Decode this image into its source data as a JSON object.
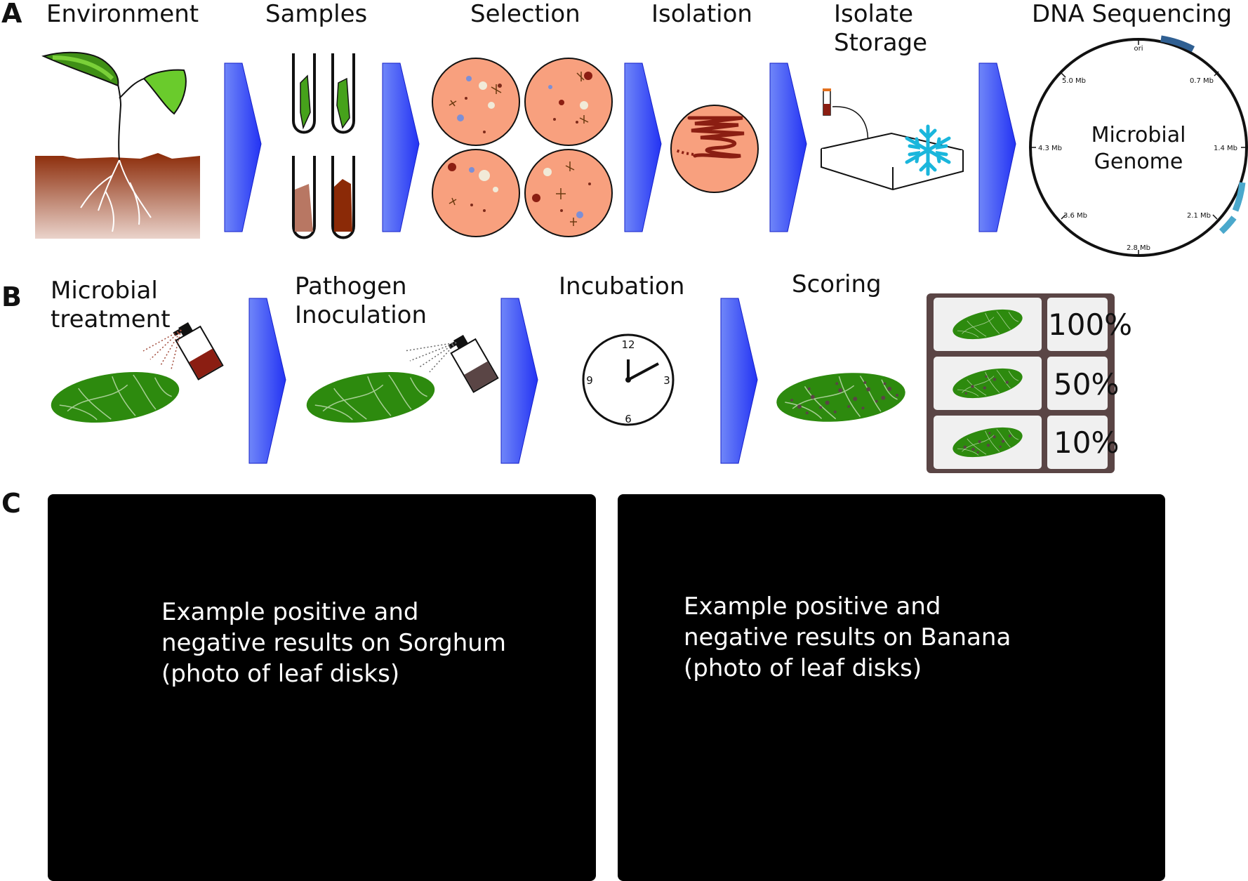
{
  "panel_a": {
    "letter": "A",
    "steps": [
      "Environment",
      "Samples",
      "Selection",
      "Isolation",
      "Isolate\nStorage",
      "DNA Sequencing"
    ],
    "genome": {
      "center_label": "Microbial\nGenome",
      "ticks": [
        "ori",
        "0.7 Mb",
        "1.4 Mb",
        "2.1 Mb",
        "2.8 Mb",
        "3.6 Mb",
        "4.3 Mb",
        "5.0 Mb"
      ]
    }
  },
  "panel_b": {
    "letter": "B",
    "steps": [
      "Microbial\ntreatment",
      "Pathogen\nInoculation",
      "Incubation",
      "Scoring"
    ],
    "clock_numbers": [
      "12",
      "3",
      "6",
      "9"
    ],
    "scores": [
      "100%",
      "50%",
      "10%"
    ]
  },
  "panel_c": {
    "letter": "C",
    "placeholders": [
      "Example positive and\nnegative results on Sorghum\n(photo of leaf disks)",
      "Example positive and\nnegative results on Banana\n(photo of leaf disks)"
    ]
  },
  "colors": {
    "arrow_blue": "#2a3cf5",
    "leaf_green": "#2d8a0e",
    "plate_salmon": "#f8a07e",
    "soil_brown": "#8b2a07",
    "snowflake": "#1ab6dc",
    "genome_marker_dark": "#2f5f92",
    "genome_marker_light": "#4aa8cc",
    "score_frame": "#5a4545"
  }
}
